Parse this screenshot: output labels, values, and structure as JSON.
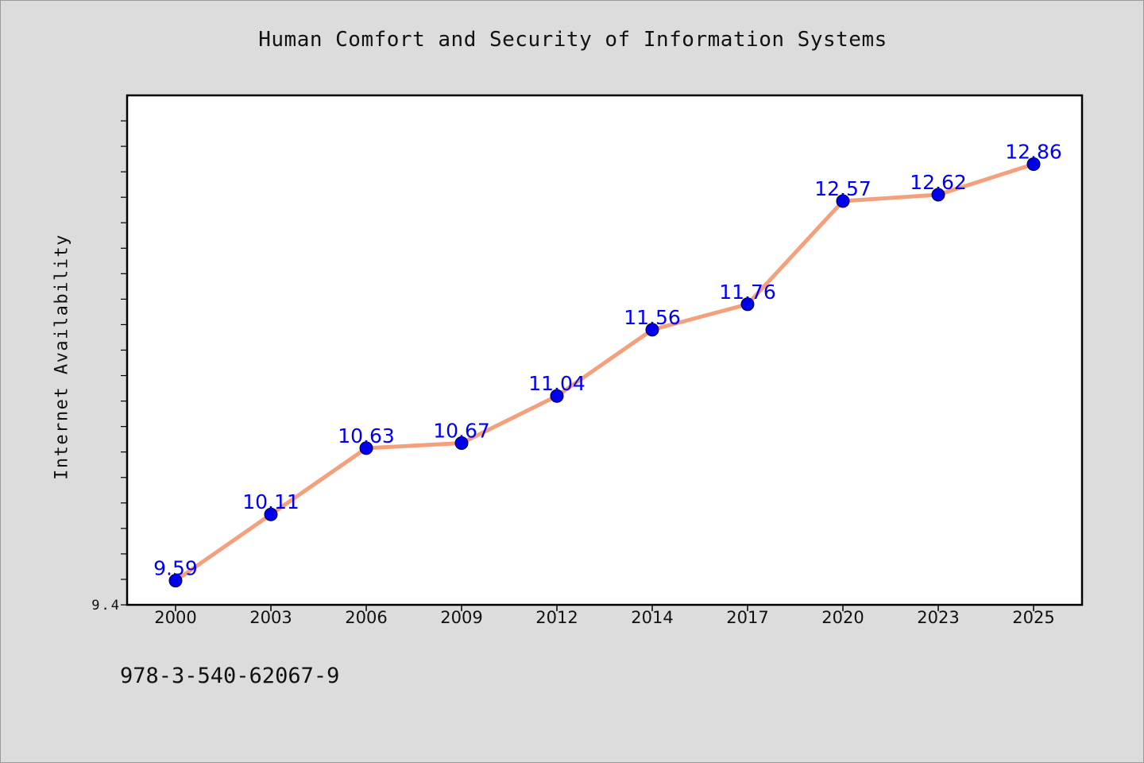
{
  "chart_data": {
    "type": "line",
    "title": "Human Comfort and Security of Information Systems",
    "xlabel": "",
    "ylabel": "Internet Availability",
    "categories": [
      "2000",
      "2003",
      "2006",
      "2009",
      "2012",
      "2014",
      "2017",
      "2020",
      "2023",
      "2025"
    ],
    "series": [
      {
        "values": [
          9.59,
          10.11,
          10.63,
          10.67,
          11.04,
          11.56,
          11.76,
          12.57,
          12.62,
          12.86
        ]
      }
    ],
    "data_labels": [
      "9.59",
      "10.11",
      "10.63",
      "10.67",
      "11.04",
      "11.56",
      "11.76",
      "12.57",
      "12.62",
      "12.86"
    ],
    "ylim": [
      9.4,
      13.4
    ],
    "y_tick_labels": [
      "9.4"
    ],
    "grid": false,
    "legend": "none",
    "colors": {
      "line": "#f4a07c",
      "marker": "#0000ee",
      "label": "#0000ee",
      "plot_background": "#ffffff",
      "page_background": "#dcdcdc"
    }
  },
  "footer": {
    "isbn": "978-3-540-62067-9"
  }
}
